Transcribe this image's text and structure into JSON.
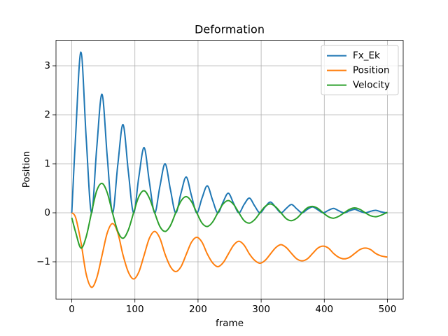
{
  "chart_data": {
    "type": "line",
    "title": "Deformation",
    "x_label": "frame",
    "y_label": "Position",
    "x": [
      0,
      6.2,
      14.5,
      22.8,
      31.2,
      39.5,
      47.9,
      56.2,
      64.5,
      72.9,
      81.2,
      89.6,
      97.9,
      106.2,
      114.6,
      122.9,
      131.3,
      139.6,
      147.9,
      156.3,
      164.6,
      173,
      181.3,
      189.6,
      198,
      206.3,
      214.7,
      223,
      231.3,
      239.7,
      248,
      256.4,
      264.7,
      273,
      281.4,
      289.7,
      298.1,
      306.4,
      314.7,
      323.1,
      331.4,
      339.8,
      348.1,
      356.4,
      364.8,
      373.1,
      381.5,
      389.8,
      398.1,
      406.5,
      414.8,
      423.2,
      431.5,
      439.8,
      448.2,
      456.5,
      464.9,
      473.2,
      481.5,
      489.9,
      498.2,
      500
    ],
    "series": [
      {
        "name": "Fx_Ek",
        "color": "#1f77b4",
        "values": [
          0,
          1.6,
          3.28,
          1.53,
          0,
          1.32,
          2.42,
          1.14,
          0,
          0.98,
          1.8,
          0.84,
          0,
          0.73,
          1.33,
          0.63,
          0,
          0.54,
          1,
          0.47,
          0,
          0.4,
          0.73,
          0.35,
          0,
          0.3,
          0.55,
          0.26,
          0,
          0.22,
          0.4,
          0.19,
          0,
          0.17,
          0.3,
          0.14,
          0,
          0.12,
          0.22,
          0.11,
          0,
          0.09,
          0.17,
          0.08,
          0,
          0.07,
          0.12,
          0.06,
          0,
          0.05,
          0.09,
          0.04,
          0,
          0.04,
          0.07,
          0.03,
          0,
          0.03,
          0.05,
          0.02,
          0,
          0
        ]
      },
      {
        "name": "Position",
        "color": "#ff7f0e",
        "values": [
          0,
          -0.1,
          -0.6,
          -1.25,
          -1.52,
          -1.33,
          -0.87,
          -0.41,
          -0.22,
          -0.41,
          -0.865,
          -1.21,
          -1.35,
          -1.21,
          -0.865,
          -0.52,
          -0.38,
          -0.52,
          -0.85,
          -1.1,
          -1.2,
          -1.1,
          -0.85,
          -0.6,
          -0.5,
          -0.6,
          -0.84,
          -1.02,
          -1.1,
          -1.02,
          -0.84,
          -0.66,
          -0.58,
          -0.66,
          -0.84,
          -0.97,
          -1.03,
          -0.97,
          -0.84,
          -0.71,
          -0.65,
          -0.71,
          -0.83,
          -0.94,
          -0.98,
          -0.94,
          -0.83,
          -0.72,
          -0.68,
          -0.72,
          -0.83,
          -0.91,
          -0.94,
          -0.91,
          -0.83,
          -0.75,
          -0.72,
          -0.75,
          -0.83,
          -0.88,
          -0.9,
          -0.9
        ]
      },
      {
        "name": "Velocity",
        "color": "#2ca02c",
        "values": [
          -0.1,
          -0.4,
          -0.72,
          -0.49,
          0,
          0.45,
          0.6,
          0.41,
          0,
          -0.38,
          -0.52,
          -0.35,
          0,
          0.33,
          0.45,
          0.3,
          0,
          -0.28,
          -0.38,
          -0.26,
          0,
          0.24,
          0.33,
          0.23,
          0,
          -0.21,
          -0.28,
          -0.19,
          0,
          0.18,
          0.25,
          0.17,
          0,
          -0.16,
          -0.21,
          -0.14,
          0,
          0.13,
          0.18,
          0.12,
          0,
          -0.12,
          -0.16,
          -0.11,
          0,
          0.1,
          0.13,
          0.09,
          0,
          -0.08,
          -0.11,
          -0.07,
          0,
          0.07,
          0.1,
          0.07,
          0,
          -0.06,
          -0.08,
          -0.05,
          0,
          0.01
        ]
      }
    ],
    "xlim": [
      -25,
      525
    ],
    "xticks": [
      0,
      100,
      200,
      300,
      400,
      500
    ],
    "ylim": [
      -1.76,
      3.52
    ],
    "yticks": [
      {
        "value": -1,
        "label": "−1"
      },
      0,
      1,
      2,
      3
    ],
    "grid": true,
    "legend": "upper right"
  }
}
